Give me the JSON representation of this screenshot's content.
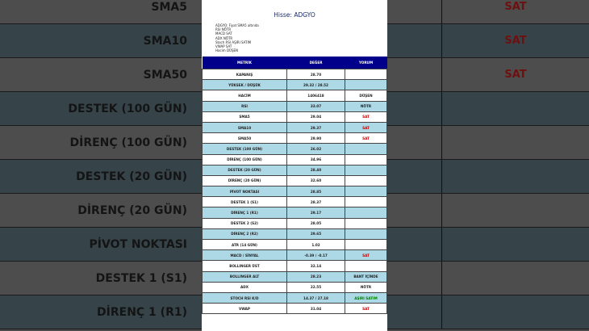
{
  "background": {
    "rows": [
      {
        "label": "SMA5",
        "comment": "SAT"
      },
      {
        "label": "SMA10",
        "comment": "SAT"
      },
      {
        "label": "SMA50",
        "comment": "SAT"
      },
      {
        "label": "DESTEK (100 GÜN)",
        "comment": ""
      },
      {
        "label": "DİRENÇ (100 GÜN)",
        "comment": ""
      },
      {
        "label": "DESTEK (20 GÜN)",
        "comment": ""
      },
      {
        "label": "DİRENÇ (20 GÜN)",
        "comment": ""
      },
      {
        "label": "PİVOT NOKTASI",
        "comment": ""
      },
      {
        "label": "DESTEK 1 (S1)",
        "comment": ""
      },
      {
        "label": "DİRENÇ 1 (R1)",
        "comment": ""
      }
    ]
  },
  "panel": {
    "title": "Hisse: ADGYO",
    "notes": [
      "ADGYO: Fiyat SMA5 altında",
      "RSI NÖTR",
      "MACD SAT",
      "ADX NÖTR",
      "Stoch RSI AŞIRI SATIM",
      "VWAP SAT",
      "Hacim DÜŞEN"
    ],
    "headers": [
      "METRİK",
      "DEĞER",
      "YORUM"
    ],
    "rows": [
      {
        "metric": "KAPANIŞ",
        "value": "28.70",
        "comment": ""
      },
      {
        "metric": "YÜKSEK / DÜŞÜK",
        "value": "29.32 / 28.52",
        "comment": ""
      },
      {
        "metric": "HACİM",
        "value": "1406418",
        "comment": "DÜŞEN"
      },
      {
        "metric": "RSI",
        "value": "33.07",
        "comment": "NÖTR"
      },
      {
        "metric": "SMA5",
        "value": "29.04",
        "comment": "SAT"
      },
      {
        "metric": "SMA10",
        "value": "29.37",
        "comment": "SAT"
      },
      {
        "metric": "SMA50",
        "value": "29.90",
        "comment": "SAT"
      },
      {
        "metric": "DESTEK (100 GÜN)",
        "value": "26.02",
        "comment": ""
      },
      {
        "metric": "DİRENÇ (100 GÜN)",
        "value": "34.96",
        "comment": ""
      },
      {
        "metric": "DESTEK (20 GÜN)",
        "value": "28.40",
        "comment": ""
      },
      {
        "metric": "DİRENÇ (20 GÜN)",
        "value": "32.60",
        "comment": ""
      },
      {
        "metric": "PİVOT NOKTASI",
        "value": "28.85",
        "comment": ""
      },
      {
        "metric": "DESTEK 1 (S1)",
        "value": "28.37",
        "comment": ""
      },
      {
        "metric": "DİRENÇ 1 (R1)",
        "value": "29.17",
        "comment": ""
      },
      {
        "metric": "DESTEK 2 (S2)",
        "value": "28.05",
        "comment": ""
      },
      {
        "metric": "DİRENÇ 2 (R2)",
        "value": "29.65",
        "comment": ""
      },
      {
        "metric": "ATR (14 GÜN)",
        "value": "1.02",
        "comment": ""
      },
      {
        "metric": "MACD / SİNYAL",
        "value": "-0.39 / -0.17",
        "comment": "SAT"
      },
      {
        "metric": "BOLLINGER ÜST",
        "value": "32.14",
        "comment": ""
      },
      {
        "metric": "BOLLINGER ALT",
        "value": "28.23",
        "comment": "BANT İÇİNDE"
      },
      {
        "metric": "ADX",
        "value": "22.55",
        "comment": "NÖTR"
      },
      {
        "metric": "STOCH RSI K/D",
        "value": "14.37 / 27.18",
        "comment": "AŞIRI SATIM"
      },
      {
        "metric": "VWAP",
        "value": "31.04",
        "comment": "SAT"
      }
    ]
  },
  "colors": {
    "header": "#00008b",
    "alt_row": "#add8e6",
    "sell": "#cc0000",
    "oversold": "#008000"
  }
}
